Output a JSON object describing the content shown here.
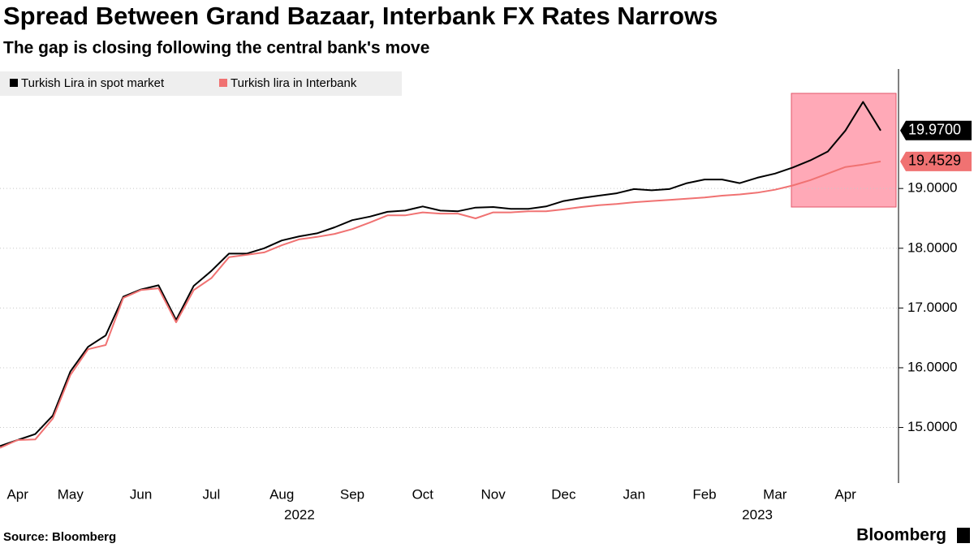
{
  "chart_data": {
    "type": "line",
    "title": "Spread Between Grand Bazaar, Interbank FX Rates Narrows",
    "subtitle": "The gap is closing following the central bank's move",
    "source": "Source: Bloomberg",
    "brand": "Bloomberg",
    "categories": [
      null,
      "Apr",
      null,
      null,
      "May",
      null,
      null,
      null,
      "Jun",
      null,
      null,
      null,
      "Jul",
      null,
      null,
      null,
      "Aug",
      null,
      null,
      null,
      "Sep",
      null,
      null,
      null,
      "Oct",
      null,
      null,
      null,
      "Nov",
      null,
      null,
      null,
      "Dec",
      null,
      null,
      null,
      "Jan",
      null,
      null,
      null,
      "Feb",
      null,
      null,
      null,
      "Mar",
      null,
      null,
      null,
      "Apr",
      null,
      null
    ],
    "years": [
      "2022",
      "2023"
    ],
    "series": [
      {
        "name": "Turkish Lira in spot market",
        "color": "#000000",
        "values": [
          14.69,
          14.79,
          14.89,
          15.2,
          15.94,
          16.35,
          16.54,
          17.19,
          17.31,
          17.38,
          16.8,
          17.37,
          17.62,
          17.91,
          17.91,
          18.0,
          18.13,
          18.2,
          18.25,
          18.35,
          18.47,
          18.53,
          18.61,
          18.63,
          18.7,
          18.63,
          18.62,
          18.68,
          18.69,
          18.66,
          18.66,
          18.7,
          18.79,
          18.84,
          18.88,
          18.92,
          18.99,
          18.97,
          18.99,
          19.09,
          19.15,
          19.15,
          19.09,
          19.18,
          19.25,
          19.35,
          19.47,
          19.62,
          19.97,
          20.45,
          19.97
        ],
        "value_labels": [
          null,
          null,
          null,
          null,
          null,
          null,
          null,
          null,
          null,
          null,
          null,
          null,
          null,
          null,
          null,
          null,
          null,
          null,
          null,
          null,
          null,
          null,
          null,
          null,
          null,
          null,
          null,
          null,
          null,
          null,
          null,
          null,
          null,
          null,
          null,
          null,
          null,
          null,
          null,
          null,
          null,
          null,
          null,
          null,
          null,
          null,
          null,
          null,
          null,
          null,
          "19.9700"
        ]
      },
      {
        "name": "Turkish lira in Interbank",
        "color": "#f07272",
        "values": [
          14.66,
          14.79,
          14.8,
          15.15,
          15.88,
          16.31,
          16.38,
          17.17,
          17.3,
          17.33,
          16.76,
          17.3,
          17.5,
          17.85,
          17.89,
          17.93,
          18.05,
          18.15,
          18.19,
          18.24,
          18.32,
          18.43,
          18.55,
          18.55,
          18.6,
          18.58,
          18.58,
          18.5,
          18.6,
          18.6,
          18.62,
          18.62,
          18.65,
          18.69,
          18.72,
          18.74,
          18.77,
          18.79,
          18.81,
          18.83,
          18.85,
          18.88,
          18.9,
          18.93,
          18.98,
          19.05,
          19.14,
          19.25,
          19.36,
          19.4,
          19.4529
        ]
      }
    ],
    "ylim": [
      14.07,
      21.0
    ],
    "yticks": [
      {
        "value": 15,
        "label": "15.0000"
      },
      {
        "value": 16,
        "label": "16.0000"
      },
      {
        "value": 17,
        "label": "17.0000"
      },
      {
        "value": 18,
        "label": "18.0000"
      },
      {
        "value": 19,
        "label": "19.0000"
      }
    ],
    "grid": true
  }
}
